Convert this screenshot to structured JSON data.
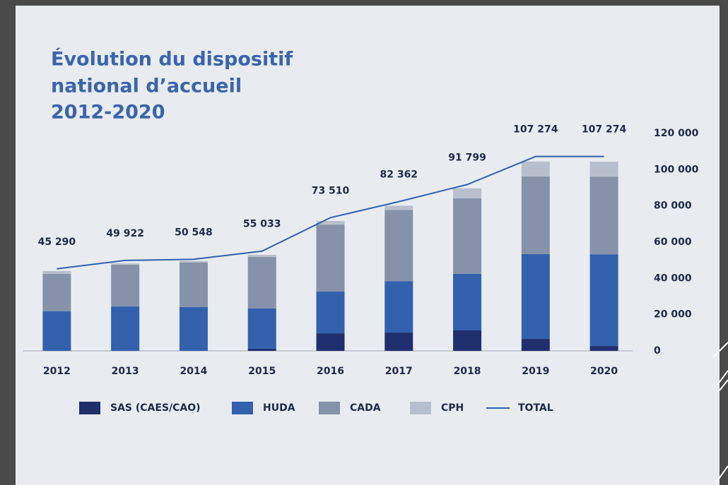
{
  "chart_data": {
    "type": "bar",
    "stacked": true,
    "title": [
      "Évolution du dispositif",
      "national d’accueil",
      "2012-2020"
    ],
    "categories": [
      "2012",
      "2013",
      "2014",
      "2015",
      "2016",
      "2017",
      "2018",
      "2019",
      "2020"
    ],
    "series": [
      {
        "name": "SAS (CAES/CAO)",
        "color": "#1f2f6e",
        "values": [
          0,
          0,
          0,
          1200,
          9700,
          10100,
          11300,
          6600,
          2700
        ]
      },
      {
        "name": "HUDA",
        "color": "#3361ad",
        "values": [
          21800,
          24500,
          24200,
          22200,
          23000,
          28400,
          31200,
          46800,
          50600
        ]
      },
      {
        "name": "CADA",
        "color": "#8592aa",
        "values": [
          20700,
          23000,
          24600,
          28400,
          37000,
          39300,
          41700,
          42900,
          42900
        ]
      },
      {
        "name": "CPH",
        "color": "#b8bfcc",
        "values": [
          1600,
          800,
          800,
          1200,
          2000,
          2300,
          5500,
          8200,
          8200
        ]
      },
      {
        "name": "TOTAL",
        "type": "line",
        "color": "#3361ad",
        "values": [
          45290,
          49922,
          50548,
          55033,
          73510,
          82362,
          91799,
          107274,
          107274
        ],
        "value_labels": [
          "45 290",
          "49 922",
          "50 548",
          "55 033",
          "73 510",
          "82 362",
          "91 799",
          "107 274",
          "107 274"
        ]
      }
    ],
    "ylim": [
      0,
      120000
    ],
    "yaxis_side": "right",
    "yticks": [
      0,
      {
        "value": 20000,
        "label": "20 000"
      },
      {
        "value": 40000,
        "label": "40 000"
      },
      {
        "value": 60000,
        "label": "60 000"
      },
      {
        "value": 80000,
        "label": "80 000"
      },
      {
        "value": 100000,
        "label": "100 000"
      },
      {
        "value": 120000,
        "label": "120 000"
      }
    ],
    "grid": false
  }
}
